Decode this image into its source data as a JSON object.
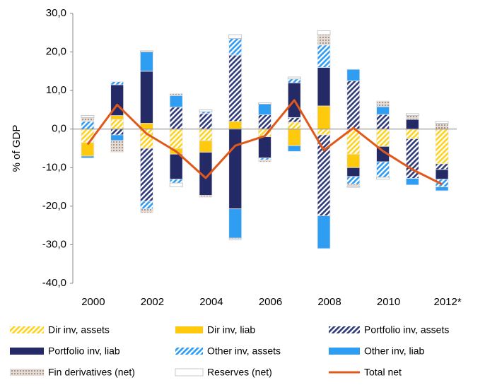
{
  "chart_data": {
    "type": "bar",
    "y_label": "% of GDP",
    "categories": [
      "2000",
      null,
      "2002",
      null,
      "2004",
      null,
      "2006",
      null,
      "2008",
      null,
      "2010",
      null,
      "2012*"
    ],
    "ylim": [
      -40,
      30
    ],
    "yticks": [
      {
        "value": 30,
        "label": "30,0"
      },
      {
        "value": 20,
        "label": "20,0"
      },
      {
        "value": 10,
        "label": "10,0"
      },
      {
        "value": 0,
        "label": "0,0"
      },
      {
        "value": -10,
        "label": "-10,0"
      },
      {
        "value": -20,
        "label": "-20,0"
      },
      {
        "value": -30,
        "label": "-30,0"
      },
      {
        "value": -40,
        "label": "-40,0"
      }
    ],
    "series": [
      {
        "name": "Dir inv, assets",
        "color": "#ffd21f",
        "pattern": "stripes",
        "values": [
          -3.5,
          2.5,
          -5,
          -5,
          -3,
          0,
          -2,
          1.8,
          -1.5,
          -6.5,
          -4.5,
          -2.5,
          -9
        ]
      },
      {
        "name": "Dir inv, liab",
        "color": "#ffc90e",
        "pattern": "solid",
        "values": [
          -3.5,
          1,
          1.5,
          -1.5,
          -3,
          2,
          0,
          -4.3,
          6,
          -3.5,
          0,
          0,
          0
        ]
      },
      {
        "name": "Portfolio inv, assets",
        "color": "#2f3a78",
        "pattern": "stripes",
        "values": [
          0,
          -1.5,
          -13.7,
          5.7,
          4,
          17.2,
          3.7,
          1.2,
          -21,
          12.5,
          3.8,
          -10.3,
          -1.5
        ]
      },
      {
        "name": "Portfolio inv, liab",
        "color": "#232a66",
        "pattern": "solid",
        "values": [
          0,
          8,
          13.5,
          -6.5,
          -11.2,
          -20.7,
          -5.5,
          9,
          10,
          -2.3,
          -4,
          2.5,
          -2.5
        ]
      },
      {
        "name": "Other inv, assets",
        "color": "#2f9bf5",
        "pattern": "stripes",
        "values": [
          2,
          0.8,
          -2,
          -1,
          0.5,
          4.3,
          -0.5,
          1,
          5.8,
          -2,
          -4,
          0,
          -2
        ]
      },
      {
        "name": "Other inv, liab",
        "color": "#2f9df2",
        "pattern": "solid",
        "values": [
          -0.5,
          -1.5,
          5,
          3,
          0,
          -7.6,
          2.8,
          -1.5,
          -8.5,
          3,
          2,
          -1.7,
          -1
        ]
      },
      {
        "name": "Fin derivatives (net)",
        "color": "#c9b9b1",
        "pattern": "dots",
        "values": [
          1,
          -3,
          -1,
          0.5,
          -0.5,
          -0.5,
          -0.5,
          0,
          2.7,
          -0.5,
          1.5,
          1,
          1.5
        ]
      },
      {
        "name": "Reserves (net)",
        "color": "#ffffff",
        "pattern": "outline",
        "values": [
          0.5,
          0,
          0.3,
          -1,
          0.5,
          1,
          0.3,
          0.5,
          1,
          -0.3,
          -0.5,
          0.5,
          0.5
        ]
      },
      {
        "name": "Total net",
        "color": "#e0581a",
        "type": "line",
        "values": [
          -4,
          6.3,
          -1.2,
          -5.8,
          -12.7,
          -4.3,
          -1.8,
          7.5,
          -5.5,
          0.3,
          -5.7,
          -10.5,
          -14.3
        ]
      }
    ]
  }
}
